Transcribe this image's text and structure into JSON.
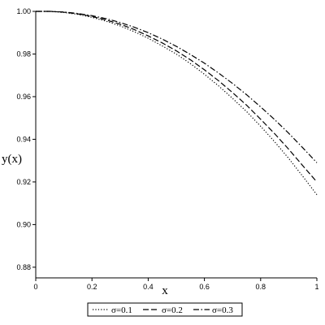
{
  "chart_data": {
    "type": "line",
    "xlabel": "x",
    "ylabel": "y(x)",
    "xlim": [
      0,
      1
    ],
    "ylim": [
      0.875,
      1.0
    ],
    "x_ticks": [
      "0",
      "0.2",
      "0.4",
      "0.6",
      "0.8",
      "1"
    ],
    "y_ticks": [
      "0.88",
      "0.90",
      "0.92",
      "0.94",
      "0.96",
      "0.98",
      "1.00"
    ],
    "grid": false,
    "legend_position": "bottom",
    "x": [
      0,
      0.05,
      0.1,
      0.15,
      0.2,
      0.25,
      0.3,
      0.35,
      0.4,
      0.45,
      0.5,
      0.55,
      0.6,
      0.65,
      0.7,
      0.75,
      0.8,
      0.85,
      0.9,
      0.95,
      1.0
    ],
    "series": [
      {
        "name": "σ=0.1",
        "style": "dotted",
        "values": [
          1.0,
          1.0,
          0.9995,
          0.9986,
          0.9972,
          0.9954,
          0.9932,
          0.9905,
          0.9874,
          0.9838,
          0.98,
          0.9755,
          0.9705,
          0.9651,
          0.9592,
          0.953,
          0.9461,
          0.9388,
          0.931,
          0.9226,
          0.914
        ]
      },
      {
        "name": "σ=0.2",
        "style": "dashed",
        "values": [
          1.0,
          1.0,
          0.9996,
          0.9988,
          0.9976,
          0.996,
          0.994,
          0.9915,
          0.9885,
          0.9852,
          0.9815,
          0.9773,
          0.9726,
          0.9675,
          0.9619,
          0.956,
          0.9494,
          0.9426,
          0.9353,
          0.9276,
          0.92
        ]
      },
      {
        "name": "σ=0.3",
        "style": "dashdot",
        "values": [
          1.0,
          1.0,
          0.9997,
          0.999,
          0.998,
          0.9966,
          0.9948,
          0.9926,
          0.99,
          0.987,
          0.9836,
          0.9798,
          0.9757,
          0.9711,
          0.9662,
          0.9609,
          0.9552,
          0.9492,
          0.9428,
          0.936,
          0.929
        ]
      }
    ]
  }
}
